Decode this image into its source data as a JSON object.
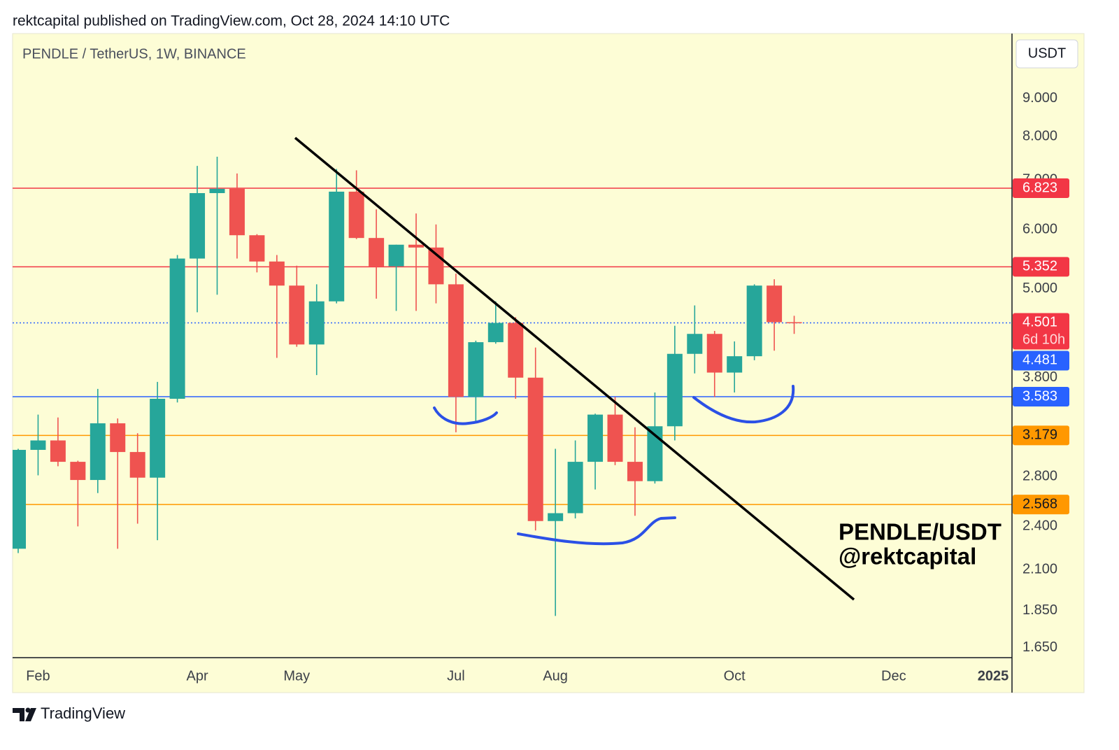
{
  "header": {
    "attribution": "rektcapital published on TradingView.com, Oct 28, 2024 14:10 UTC"
  },
  "footer": {
    "brand": "TradingView"
  },
  "chart_data": {
    "type": "candlestick",
    "title": "PENDLE / TetherUS, 1W, BINANCE",
    "currency": "USDT",
    "annotations": [
      "PENDLE/USDT",
      "@rektcapital"
    ],
    "categories": [
      null,
      "Feb",
      null,
      null,
      null,
      null,
      null,
      null,
      null,
      "Apr",
      null,
      null,
      null,
      null,
      "May",
      null,
      null,
      null,
      null,
      null,
      null,
      null,
      "Jul",
      null,
      null,
      null,
      null,
      "Aug",
      null,
      null,
      null,
      null,
      null,
      null,
      null,
      null,
      "Oct",
      null,
      null,
      null,
      null,
      null,
      null,
      null,
      "Dec",
      null,
      null,
      null,
      null,
      "2025"
    ],
    "open": [
      2.24,
      3.04,
      3.13,
      2.93,
      2.77,
      3.3,
      3.02,
      2.79,
      3.56,
      5.49,
      6.72,
      6.81,
      5.9,
      5.44,
      5.05,
      4.21,
      4.81,
      6.75,
      5.85,
      5.36,
      5.73,
      5.68,
      5.07,
      3.58,
      4.24,
      4.5,
      3.8,
      2.44,
      2.5,
      2.93,
      3.39,
      2.93,
      2.76,
      3.27,
      4.09,
      4.35,
      3.86,
      4.06,
      5.05,
      4.51,
      null,
      null,
      null,
      null,
      null,
      null,
      null,
      null,
      null,
      null
    ],
    "high": [
      3.05,
      3.39,
      3.36,
      2.94,
      3.67,
      3.35,
      3.2,
      3.75,
      5.55,
      7.31,
      7.52,
      7.14,
      5.92,
      5.55,
      5.37,
      5.07,
      7.24,
      7.21,
      6.39,
      5.73,
      6.31,
      6.1,
      5.24,
      4.26,
      4.81,
      4.58,
      4.17,
      3.05,
      3.13,
      3.4,
      3.58,
      3.26,
      3.63,
      4.46,
      4.75,
      4.39,
      4.25,
      5.07,
      5.15,
      4.6,
      null,
      null,
      null,
      null,
      null,
      null,
      null,
      null,
      null,
      null
    ],
    "low": [
      2.21,
      2.81,
      2.89,
      2.4,
      2.66,
      2.24,
      2.42,
      2.3,
      3.52,
      4.65,
      4.91,
      5.49,
      5.26,
      4.04,
      4.18,
      3.83,
      4.78,
      5.83,
      4.85,
      4.67,
      4.67,
      4.78,
      3.21,
      3.31,
      4.22,
      3.56,
      2.37,
      1.82,
      2.46,
      2.69,
      2.9,
      2.48,
      2.74,
      3.13,
      3.85,
      3.58,
      3.63,
      4.01,
      4.13,
      4.35,
      null,
      null,
      null,
      null,
      null,
      null,
      null,
      null,
      null,
      null
    ],
    "close": [
      3.04,
      3.13,
      2.93,
      2.77,
      3.3,
      3.02,
      2.79,
      3.56,
      5.49,
      6.72,
      6.81,
      5.9,
      5.44,
      5.05,
      4.21,
      4.81,
      6.75,
      5.85,
      5.36,
      5.73,
      5.68,
      5.07,
      3.58,
      4.24,
      4.5,
      3.8,
      2.44,
      2.5,
      2.93,
      3.39,
      2.93,
      2.76,
      3.27,
      4.09,
      4.35,
      3.86,
      4.06,
      5.05,
      4.51,
      4.501,
      null,
      null,
      null,
      null,
      null,
      null,
      null,
      null,
      null,
      null
    ],
    "up_color": "#26a69a",
    "down_color": "#ef5350",
    "log_scale": true,
    "ylim": [
      1.6,
      11
    ],
    "yticks": [
      {
        "value": 9,
        "label": "9.000"
      },
      {
        "value": 8,
        "label": "8.000"
      },
      {
        "value": 7,
        "label": "7.000"
      },
      {
        "value": 6,
        "label": "6.000"
      },
      {
        "value": 5,
        "label": "5.000"
      },
      {
        "value": 3.8,
        "label": "3.800"
      },
      {
        "value": 2.8,
        "label": "2.800"
      },
      {
        "value": 2.4,
        "label": "2.400"
      },
      {
        "value": 2.1,
        "label": "2.100"
      },
      {
        "value": 1.85,
        "label": "1.850"
      },
      {
        "value": 1.65,
        "label": "1.650"
      }
    ],
    "grid": false,
    "countdown": "6d 10h",
    "price_lines": [
      {
        "value": 6.823,
        "color": "#f23645",
        "text_color": "#ffffff",
        "line": true,
        "line_color": "#f23645",
        "line_style": "solid"
      },
      {
        "value": 5.352,
        "color": "#f23645",
        "text_color": "#ffffff",
        "line": true,
        "line_color": "#f23645",
        "line_style": "solid"
      },
      {
        "value": 4.501,
        "color": "#f23645",
        "text_color": "#ffffff",
        "line": true,
        "line_color": "#2962ff",
        "line_style": "dotted",
        "countdown": true
      },
      {
        "value": 4.481,
        "color": "#2962ff",
        "text_color": "#ffffff",
        "line": false
      },
      {
        "value": 3.583,
        "color": "#2962ff",
        "text_color": "#ffffff",
        "line": true,
        "line_color": "#2962ff",
        "line_style": "solid"
      },
      {
        "value": 3.179,
        "color": "#ff9800",
        "text_color": "#131722",
        "line": true,
        "line_color": "#ff9800",
        "line_style": "solid"
      },
      {
        "value": 2.568,
        "color": "#ff9800",
        "text_color": "#131722",
        "line": true,
        "line_color": "#ff9800",
        "line_style": "solid"
      }
    ]
  }
}
